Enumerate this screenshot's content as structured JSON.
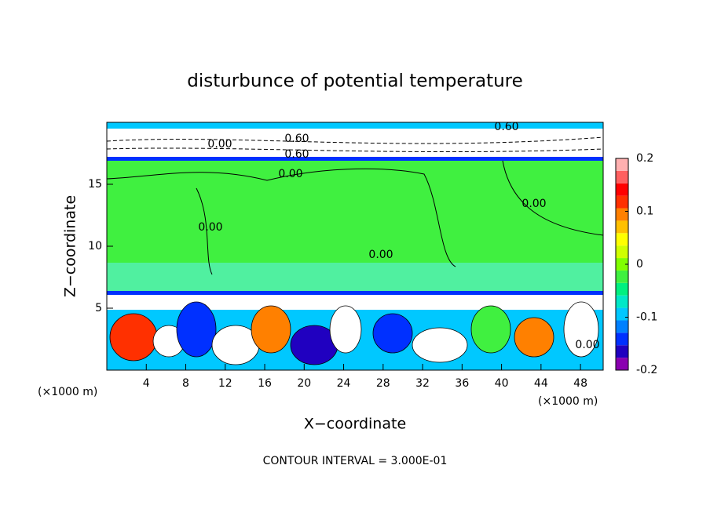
{
  "chart_data": {
    "type": "contour",
    "title": "disturbunce of potential temperature",
    "x_label": "X−coordinate",
    "y_label": "Z−coordinate",
    "x_unit_left": "(×1000 m)",
    "x_unit_right": "(×1000 m)",
    "note": "CONTOUR INTERVAL = 3.000E-01",
    "xlim": [
      0,
      50.3
    ],
    "xticks": [
      4,
      8,
      12,
      16,
      20,
      24,
      28,
      32,
      36,
      40,
      44,
      48
    ],
    "ylim": [
      0,
      20
    ],
    "yticks": [
      5,
      10,
      15
    ],
    "colorbar_lim": [
      -0.2,
      0.2
    ],
    "colorbar_ticks": [
      -0.2,
      -0.1,
      0,
      0.1,
      0.2
    ],
    "colormap": [
      "#8a00b0",
      "#2000c0",
      "#0030ff",
      "#0080ff",
      "#00c8ff",
      "#00e8c8",
      "#00f080",
      "#40f040",
      "#80ff00",
      "#d0ff00",
      "#ffff00",
      "#ffc000",
      "#ff8000",
      "#ff3000",
      "#ff0000",
      "#ff6060",
      "#ffb0b0"
    ],
    "contour_labels": [
      "0.00",
      "0.60",
      "0.60",
      "0.60",
      "0.00",
      "0.00",
      "0.00",
      "0.00",
      "0.00"
    ]
  }
}
